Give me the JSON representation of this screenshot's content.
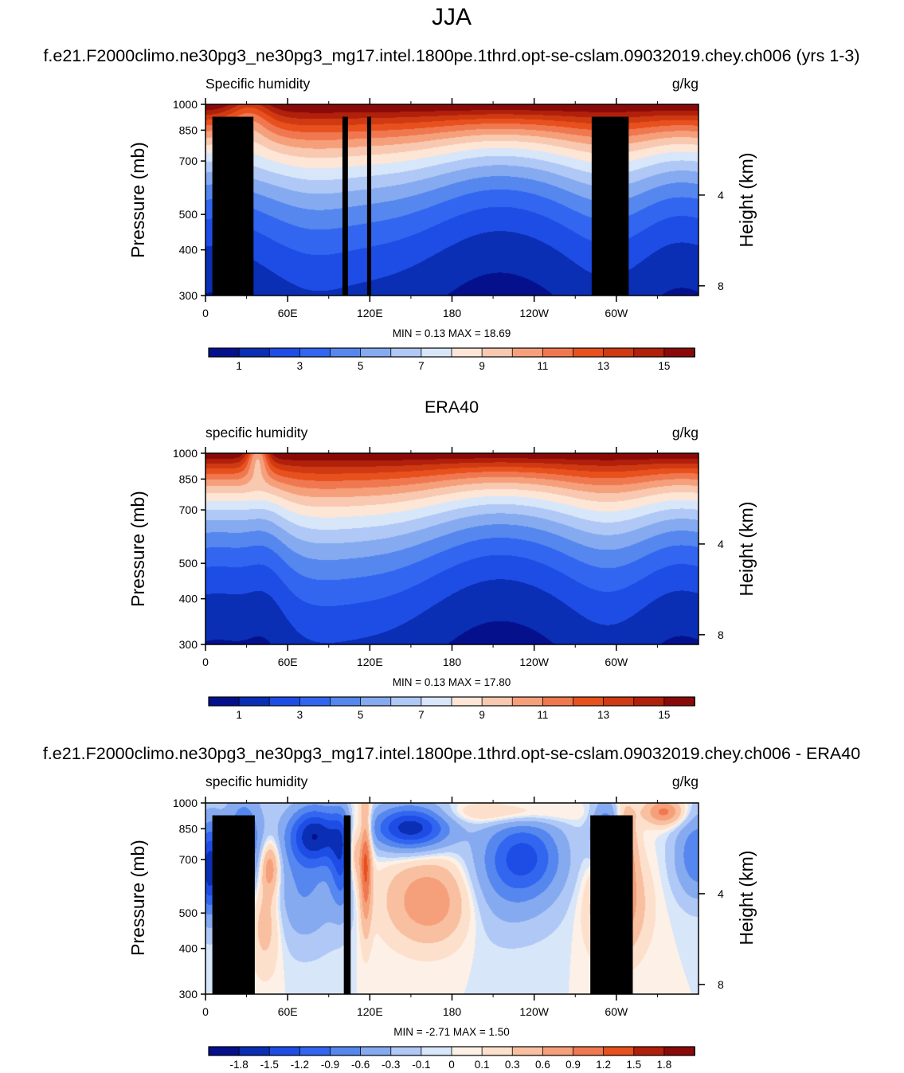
{
  "page": {
    "title": "JJA"
  },
  "chart_data": [
    {
      "type": "heatmap",
      "suptitle": "f.e21.F2000climo.ne30pg3_ne30pg3_mg17.intel.1800pe.1thrd.opt-se-cslam.09032019.chey.ch006 (yrs 1-3)",
      "variable_label": "Specific humidity",
      "units": "g/kg",
      "ylabel": "Pressure (mb)",
      "ylabel_right": "Height (km)",
      "x_ticks": [
        "0",
        "60E",
        "120E",
        "180",
        "120W",
        "60W"
      ],
      "x_tick_values": [
        0,
        60,
        120,
        180,
        240,
        300
      ],
      "xlim": [
        0,
        360
      ],
      "y_ticks": [
        "300",
        "400",
        "500",
        "700",
        "850",
        "1000"
      ],
      "y_tick_values": [
        300,
        400,
        500,
        700,
        850,
        1000
      ],
      "ylim": [
        1000,
        300
      ],
      "right_ticks": [
        "8",
        "4"
      ],
      "right_tick_values": [
        8,
        4
      ],
      "stats": "MIN =   0.13  MAX =  18.69",
      "min": 0.13,
      "max": 18.69,
      "colorbar": {
        "labels": [
          "1",
          "3",
          "5",
          "7",
          "9",
          "11",
          "13",
          "15"
        ],
        "levels": [
          1,
          2,
          3,
          4,
          5,
          6,
          7,
          8,
          9,
          10,
          11,
          12,
          13,
          14,
          15
        ],
        "colors": [
          "#05108c",
          "#0a2eb4",
          "#1e4de6",
          "#3266f0",
          "#5587ee",
          "#85aaf0",
          "#b0c8f5",
          "#d8e6fa",
          "#fde6d6",
          "#f8c8b0",
          "#f5a07a",
          "#f07850",
          "#e8501e",
          "#d03a12",
          "#b0200a",
          "#8a0a0a"
        ]
      },
      "topography": [
        {
          "x0": 5,
          "x1": 35,
          "p_top": 925
        },
        {
          "x0": 27,
          "x1": 35,
          "p_top": 850
        },
        {
          "x0": 100,
          "x1": 104,
          "p_top": 925
        },
        {
          "x0": 118,
          "x1": 121,
          "p_top": 925
        },
        {
          "x0": 282,
          "x1": 309,
          "p_top": 925
        }
      ]
    },
    {
      "type": "heatmap",
      "subtitle": "ERA40",
      "variable_label": "specific humidity",
      "units": "g/kg",
      "ylabel": "Pressure (mb)",
      "ylabel_right": "Height (km)",
      "x_ticks": [
        "0",
        "60E",
        "120E",
        "180",
        "120W",
        "60W"
      ],
      "x_tick_values": [
        0,
        60,
        120,
        180,
        240,
        300
      ],
      "xlim": [
        0,
        360
      ],
      "y_ticks": [
        "300",
        "400",
        "500",
        "700",
        "850",
        "1000"
      ],
      "y_tick_values": [
        300,
        400,
        500,
        700,
        850,
        1000
      ],
      "ylim": [
        1000,
        300
      ],
      "right_ticks": [
        "8",
        "4"
      ],
      "right_tick_values": [
        8,
        4
      ],
      "stats": "MIN =   0.13  MAX =  17.80",
      "min": 0.13,
      "max": 17.8,
      "colorbar": {
        "labels": [
          "1",
          "3",
          "5",
          "7",
          "9",
          "11",
          "13",
          "15"
        ],
        "levels": [
          1,
          2,
          3,
          4,
          5,
          6,
          7,
          8,
          9,
          10,
          11,
          12,
          13,
          14,
          15
        ],
        "colors": [
          "#05108c",
          "#0a2eb4",
          "#1e4de6",
          "#3266f0",
          "#5587ee",
          "#85aaf0",
          "#b0c8f5",
          "#d8e6fa",
          "#fde6d6",
          "#f8c8b0",
          "#f5a07a",
          "#f07850",
          "#e8501e",
          "#d03a12",
          "#b0200a",
          "#8a0a0a"
        ]
      },
      "topography": []
    },
    {
      "type": "heatmap",
      "suptitle": "f.e21.F2000climo.ne30pg3_ne30pg3_mg17.intel.1800pe.1thrd.opt-se-cslam.09032019.chey.ch006 - ERA40",
      "variable_label": "specific humidity",
      "units": "g/kg",
      "ylabel": "Pressure (mb)",
      "ylabel_right": "Height (km)",
      "x_ticks": [
        "0",
        "60E",
        "120E",
        "180",
        "120W",
        "60W"
      ],
      "x_tick_values": [
        0,
        60,
        120,
        180,
        240,
        300
      ],
      "xlim": [
        0,
        360
      ],
      "y_ticks": [
        "300",
        "400",
        "500",
        "700",
        "850",
        "1000"
      ],
      "y_tick_values": [
        300,
        400,
        500,
        700,
        850,
        1000
      ],
      "ylim": [
        1000,
        300
      ],
      "right_ticks": [
        "8",
        "4"
      ],
      "right_tick_values": [
        8,
        4
      ],
      "stats": "MIN =  -2.71  MAX =   1.50",
      "min": -2.71,
      "max": 1.5,
      "colorbar": {
        "labels": [
          "-1.8",
          "-1.5",
          "-1.2",
          "-0.9",
          "-0.6",
          "-0.3",
          "-0.1",
          "0",
          "0.1",
          "0.3",
          "0.6",
          "0.9",
          "1.2",
          "1.5",
          "1.8"
        ],
        "levels": [
          -1.8,
          -1.5,
          -1.2,
          -0.9,
          -0.6,
          -0.3,
          -0.1,
          0,
          0.1,
          0.3,
          0.6,
          0.9,
          1.2,
          1.5,
          1.8
        ],
        "colors": [
          "#05108c",
          "#0a2eb4",
          "#1e4de6",
          "#3266f0",
          "#5587ee",
          "#85aaf0",
          "#b0c8f5",
          "#d8e6fa",
          "#fdf0e6",
          "#fde0cc",
          "#f8c0a0",
          "#f5a07a",
          "#f07850",
          "#e8501e",
          "#b0200a",
          "#8a0a0a"
        ]
      },
      "topography": [
        {
          "x0": 5,
          "x1": 36,
          "p_top": 925
        },
        {
          "x0": 27,
          "x1": 35,
          "p_top": 850
        },
        {
          "x0": 101,
          "x1": 106,
          "p_top": 925
        },
        {
          "x0": 281,
          "x1": 312,
          "p_top": 925
        }
      ]
    }
  ]
}
